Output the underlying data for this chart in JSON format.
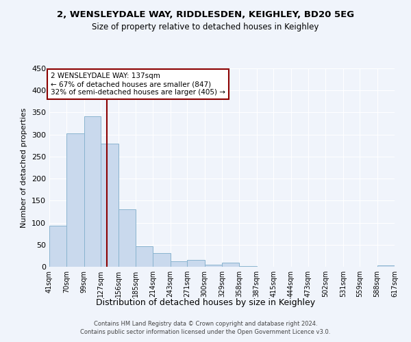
{
  "title": "2, WENSLEYDALE WAY, RIDDLESDEN, KEIGHLEY, BD20 5EG",
  "subtitle": "Size of property relative to detached houses in Keighley",
  "xlabel": "Distribution of detached houses by size in Keighley",
  "ylabel": "Number of detached properties",
  "bar_color": "#c9d9ed",
  "bar_edge_color": "#8ab4cf",
  "background_color": "#f0f4fb",
  "grid_color": "#ffffff",
  "property_line_value": 137,
  "property_line_color": "#8b0000",
  "annotation_text": "2 WENSLEYDALE WAY: 137sqm\n← 67% of detached houses are smaller (847)\n32% of semi-detached houses are larger (405) →",
  "annotation_box_color": "#ffffff",
  "annotation_box_edge_color": "#8b0000",
  "bin_edges": [
    41,
    70,
    99,
    127,
    156,
    185,
    214,
    243,
    271,
    300,
    329,
    358,
    387,
    415,
    444,
    473,
    502,
    531,
    559,
    588,
    617
  ],
  "bin_labels": [
    "41sqm",
    "70sqm",
    "99sqm",
    "127sqm",
    "156sqm",
    "185sqm",
    "214sqm",
    "243sqm",
    "271sqm",
    "300sqm",
    "329sqm",
    "358sqm",
    "387sqm",
    "415sqm",
    "444sqm",
    "473sqm",
    "502sqm",
    "531sqm",
    "559sqm",
    "588sqm",
    "617sqm"
  ],
  "counts": [
    93,
    303,
    341,
    280,
    131,
    47,
    31,
    13,
    15,
    5,
    10,
    2,
    0,
    0,
    0,
    0,
    0,
    0,
    0,
    3
  ],
  "ylim": [
    0,
    450
  ],
  "yticks": [
    0,
    50,
    100,
    150,
    200,
    250,
    300,
    350,
    400,
    450
  ],
  "footer_line1": "Contains HM Land Registry data © Crown copyright and database right 2024.",
  "footer_line2": "Contains public sector information licensed under the Open Government Licence v3.0."
}
